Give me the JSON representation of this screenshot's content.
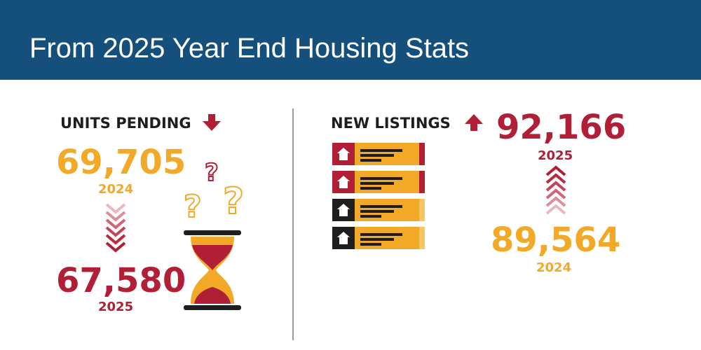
{
  "header": {
    "title": "From 2025 Year End Housing Stats"
  },
  "units_pending": {
    "label": "UNITS PENDING",
    "value_2024": "69,705",
    "year_2024": "2024",
    "value_2025": "67,580",
    "year_2025": "2025"
  },
  "new_listings": {
    "label": "NEW LISTINGS",
    "value_2025": "92,166",
    "year_2025": "2025",
    "value_2024": "89,564",
    "year_2024": "2024"
  }
}
